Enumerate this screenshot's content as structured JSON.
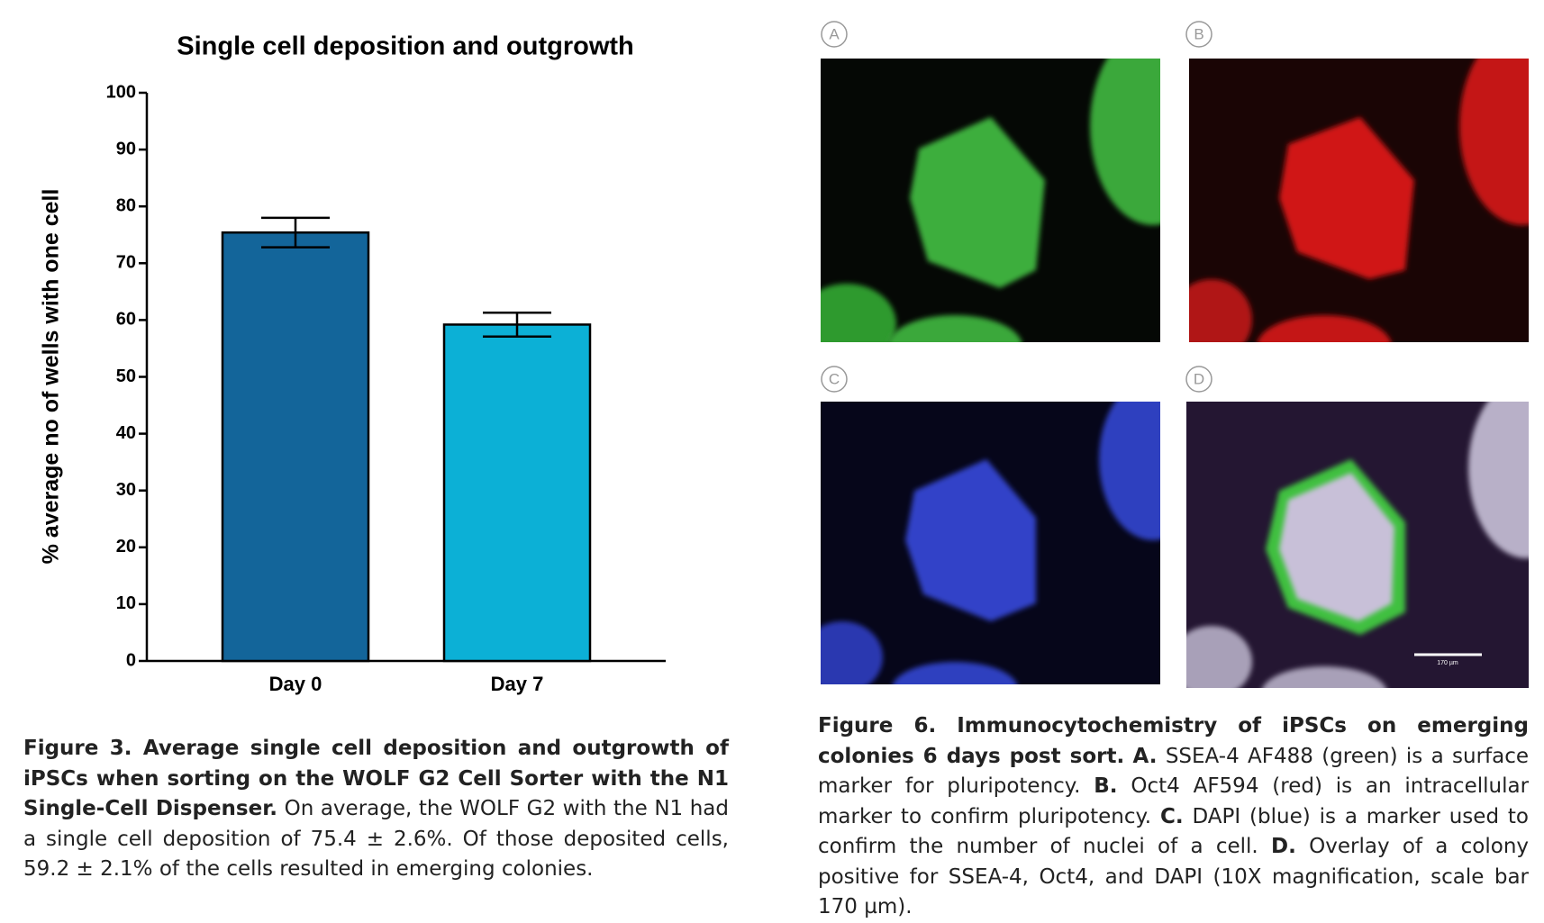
{
  "chart_data": {
    "type": "bar",
    "title": "Single cell deposition and outgrowth",
    "y_label": "% average no of wells with one cell",
    "categories": [
      "Day 0",
      "Day 7"
    ],
    "values": [
      75.4,
      59.2
    ],
    "errors": [
      2.6,
      2.1
    ],
    "colors": [
      "#13659a",
      "#0cb0d6"
    ],
    "ylim": [
      0,
      100
    ],
    "yticks": [
      0,
      10,
      20,
      30,
      40,
      50,
      60,
      70,
      80,
      90,
      100
    ]
  },
  "figure3_caption": {
    "bold": "Figure 3. Average single cell deposition and outgrowth of iPSCs when sorting on the WOLF G2 Cell Sorter with the N1 Single-Cell Dispenser.",
    "text": "On average, the WOLF G2 with the N1 had a single cell deposition of 75.4 ± 2.6%. Of those deposited cells, 59.2 ± 2.1% of the cells resulted in emerging colonies."
  },
  "panels": {
    "labels": [
      "A",
      "B",
      "C",
      "D"
    ],
    "scale_bar": "170 µm"
  },
  "figure6_caption": {
    "title": "Figure 6. Immunocytochemistry of iPSCs on emerging colonies 6 days post sort.",
    "items": [
      {
        "label": "A.",
        "text": "SSEA-4 AF488 (green) is a surface marker for pluripotency."
      },
      {
        "label": "B.",
        "text": "Oct4 AF594 (red) is an intracellular marker to confirm pluripotency."
      },
      {
        "label": "C.",
        "text": "DAPI (blue) is a marker used to confirm the number of nuclei of a cell."
      },
      {
        "label": "D.",
        "text": "Overlay of a colony positive for SSEA-4, Oct4, and DAPI (10X magnification, scale bar 170 µm)."
      }
    ]
  }
}
